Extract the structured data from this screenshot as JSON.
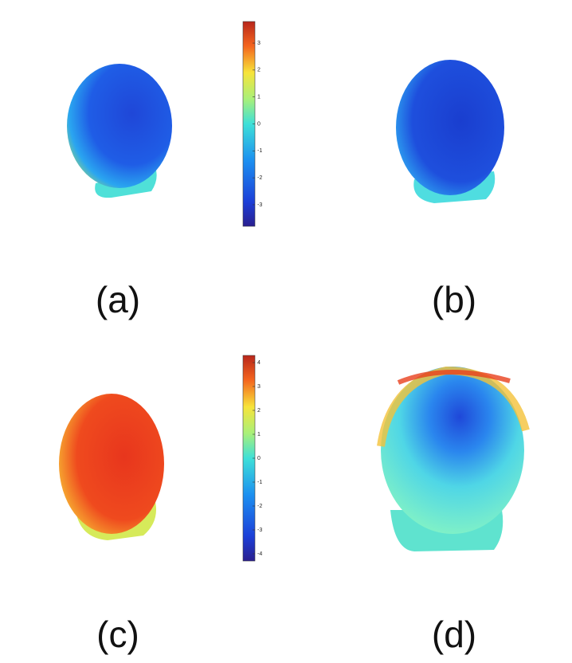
{
  "figure": {
    "panels": [
      {
        "label": "(a)"
      },
      {
        "label": "(b)"
      },
      {
        "label": "(c)"
      },
      {
        "label": "(d)"
      }
    ],
    "colorbars": [
      {
        "ylim": [
          -3.8,
          3.8
        ],
        "yticks": [
          -3,
          -2,
          -1,
          0,
          1,
          2,
          3
        ]
      },
      {
        "ylim": [
          -4.3,
          4.3
        ],
        "yticks": [
          -4,
          -3,
          -2,
          -1,
          0,
          1,
          2,
          3,
          4
        ]
      }
    ]
  }
}
